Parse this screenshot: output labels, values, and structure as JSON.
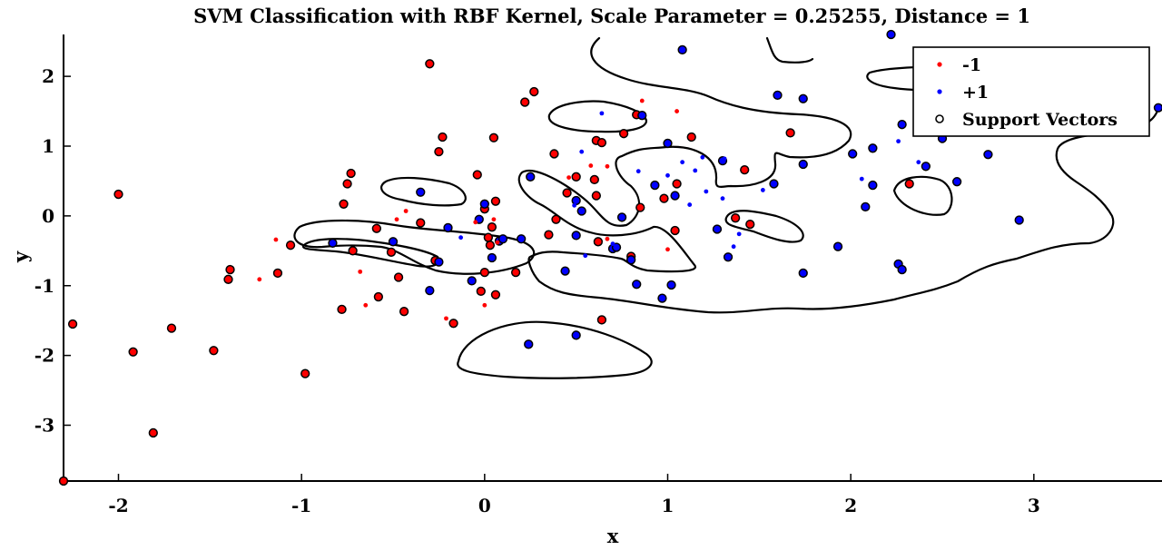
{
  "chart_data": {
    "type": "scatter",
    "title": "SVM Classification with RBF Kernel,  Scale Parameter =  0.25255,  Distance = 1",
    "xlabel": "x",
    "ylabel": "y",
    "xlim": [
      -2.3,
      3.7
    ],
    "ylim": [
      -3.8,
      2.6
    ],
    "xticks": [
      -2,
      -1,
      0,
      1,
      2,
      3
    ],
    "xtick_labels": [
      "-2",
      "-1",
      "0",
      "1",
      "2",
      "3"
    ],
    "yticks": [
      -3,
      -2,
      -1,
      0,
      1,
      2
    ],
    "ytick_labels": [
      "-3",
      "-2",
      "-1",
      "0",
      "1",
      "2"
    ],
    "grid": false,
    "legend": {
      "position": "top-right",
      "entries": [
        "-1",
        "+1",
        "Support Vectors"
      ]
    },
    "colors": {
      "neg": "#ff0000",
      "pos": "#0000ff",
      "support_vector_edge": "#000000"
    },
    "series": [
      {
        "name": "-1",
        "support_vectors": [
          [
            -2.3,
            -3.8
          ],
          [
            -2.25,
            -1.55
          ],
          [
            -1.92,
            -1.95
          ],
          [
            -1.81,
            -3.11
          ],
          [
            -1.71,
            -1.61
          ],
          [
            -2.0,
            0.31
          ],
          [
            -1.48,
            -1.93
          ],
          [
            -1.39,
            -0.77
          ],
          [
            -1.4,
            -0.91
          ],
          [
            -1.13,
            -0.82
          ],
          [
            -1.06,
            -0.42
          ],
          [
            -0.98,
            -2.26
          ],
          [
            -0.78,
            -1.34
          ],
          [
            -0.75,
            0.46
          ],
          [
            -0.73,
            0.61
          ],
          [
            -0.77,
            0.17
          ],
          [
            -0.72,
            -0.5
          ],
          [
            -0.58,
            -1.16
          ],
          [
            -0.59,
            -0.18
          ],
          [
            -0.51,
            -0.52
          ],
          [
            -0.47,
            -0.88
          ],
          [
            -0.44,
            -1.37
          ],
          [
            -0.35,
            -0.1
          ],
          [
            -0.3,
            2.18
          ],
          [
            -0.27,
            -0.64
          ],
          [
            -0.25,
            0.92
          ],
          [
            -0.23,
            1.13
          ],
          [
            -0.17,
            -1.54
          ],
          [
            -0.04,
            0.59
          ],
          [
            -0.02,
            -1.08
          ],
          [
            0.0,
            -0.81
          ],
          [
            0.0,
            0.1
          ],
          [
            0.02,
            -0.31
          ],
          [
            0.03,
            -0.42
          ],
          [
            0.04,
            -0.16
          ],
          [
            0.05,
            1.12
          ],
          [
            0.06,
            -1.13
          ],
          [
            0.06,
            0.21
          ],
          [
            0.17,
            -0.81
          ],
          [
            0.22,
            1.63
          ],
          [
            0.27,
            1.78
          ],
          [
            0.35,
            -0.27
          ],
          [
            0.38,
            0.89
          ],
          [
            0.39,
            -0.05
          ],
          [
            0.45,
            0.33
          ],
          [
            0.5,
            0.56
          ],
          [
            0.6,
            0.52
          ],
          [
            0.61,
            1.08
          ],
          [
            0.61,
            0.29
          ],
          [
            0.62,
            -0.37
          ],
          [
            0.64,
            1.05
          ],
          [
            0.64,
            -1.49
          ],
          [
            0.76,
            1.18
          ],
          [
            0.8,
            -0.58
          ],
          [
            0.83,
            1.45
          ],
          [
            0.85,
            0.12
          ],
          [
            0.98,
            0.25
          ],
          [
            1.04,
            -0.21
          ],
          [
            1.05,
            0.46
          ],
          [
            1.13,
            1.13
          ],
          [
            1.42,
            0.66
          ],
          [
            1.45,
            -0.12
          ],
          [
            1.37,
            -0.03
          ],
          [
            1.67,
            1.19
          ],
          [
            2.32,
            0.46
          ]
        ],
        "points": [
          [
            -1.23,
            -0.91
          ],
          [
            -1.14,
            -0.34
          ],
          [
            -0.68,
            -0.8
          ],
          [
            -0.65,
            -1.28
          ],
          [
            -0.48,
            -0.05
          ],
          [
            -0.43,
            0.07
          ],
          [
            -0.21,
            -1.47
          ],
          [
            -0.05,
            -0.09
          ],
          [
            0.0,
            -1.28
          ],
          [
            0.05,
            -0.05
          ],
          [
            0.07,
            -0.38
          ],
          [
            0.46,
            0.55
          ],
          [
            0.5,
            0.55
          ],
          [
            0.58,
            0.72
          ],
          [
            0.67,
            0.71
          ],
          [
            0.67,
            -0.33
          ],
          [
            0.86,
            1.65
          ],
          [
            1.0,
            -0.48
          ],
          [
            1.05,
            1.5
          ]
        ]
      },
      {
        "name": "+1",
        "support_vectors": [
          [
            -0.83,
            -0.39
          ],
          [
            -0.5,
            -0.37
          ],
          [
            -0.35,
            0.34
          ],
          [
            -0.3,
            -1.07
          ],
          [
            -0.25,
            -0.66
          ],
          [
            -0.2,
            -0.17
          ],
          [
            -0.07,
            -0.93
          ],
          [
            -0.03,
            -0.05
          ],
          [
            0.0,
            0.17
          ],
          [
            0.04,
            -0.6
          ],
          [
            0.08,
            -0.36
          ],
          [
            0.1,
            -0.33
          ],
          [
            0.2,
            -0.33
          ],
          [
            0.24,
            -1.84
          ],
          [
            0.25,
            0.56
          ],
          [
            0.44,
            -0.79
          ],
          [
            0.5,
            -1.71
          ],
          [
            0.5,
            0.22
          ],
          [
            0.5,
            -0.28
          ],
          [
            0.53,
            0.07
          ],
          [
            0.7,
            -0.47
          ],
          [
            0.72,
            -0.45
          ],
          [
            0.75,
            -0.02
          ],
          [
            0.8,
            -0.63
          ],
          [
            0.83,
            -0.98
          ],
          [
            0.86,
            1.44
          ],
          [
            0.93,
            0.44
          ],
          [
            0.97,
            -1.18
          ],
          [
            1.0,
            1.04
          ],
          [
            1.02,
            -0.99
          ],
          [
            1.04,
            0.29
          ],
          [
            1.08,
            2.38
          ],
          [
            1.27,
            -0.19
          ],
          [
            1.3,
            0.79
          ],
          [
            1.33,
            -0.59
          ],
          [
            1.58,
            0.46
          ],
          [
            1.6,
            1.73
          ],
          [
            1.74,
            1.68
          ],
          [
            1.74,
            0.74
          ],
          [
            1.74,
            -0.82
          ],
          [
            1.93,
            -0.44
          ],
          [
            2.01,
            0.89
          ],
          [
            2.08,
            0.13
          ],
          [
            2.12,
            0.44
          ],
          [
            2.12,
            0.97
          ],
          [
            2.22,
            2.6
          ],
          [
            2.26,
            -0.69
          ],
          [
            2.28,
            -0.77
          ],
          [
            2.28,
            1.31
          ],
          [
            2.41,
            0.71
          ],
          [
            2.5,
            1.11
          ],
          [
            2.58,
            0.49
          ],
          [
            2.75,
            0.88
          ],
          [
            2.92,
            -0.06
          ],
          [
            3.68,
            1.55
          ]
        ],
        "points": [
          [
            -0.13,
            -0.31
          ],
          [
            0.49,
            0.15
          ],
          [
            0.53,
            0.92
          ],
          [
            0.55,
            -0.57
          ],
          [
            0.64,
            1.47
          ],
          [
            0.7,
            -0.4
          ],
          [
            0.84,
            0.64
          ],
          [
            1.0,
            0.58
          ],
          [
            1.08,
            0.77
          ],
          [
            1.12,
            0.16
          ],
          [
            1.15,
            0.65
          ],
          [
            1.19,
            0.84
          ],
          [
            1.21,
            0.35
          ],
          [
            1.3,
            0.25
          ],
          [
            1.31,
            0.82
          ],
          [
            1.36,
            -0.44
          ],
          [
            1.39,
            -0.26
          ],
          [
            1.52,
            0.37
          ],
          [
            2.06,
            0.53
          ],
          [
            2.26,
            1.07
          ],
          [
            2.37,
            0.77
          ]
        ]
      }
    ]
  }
}
